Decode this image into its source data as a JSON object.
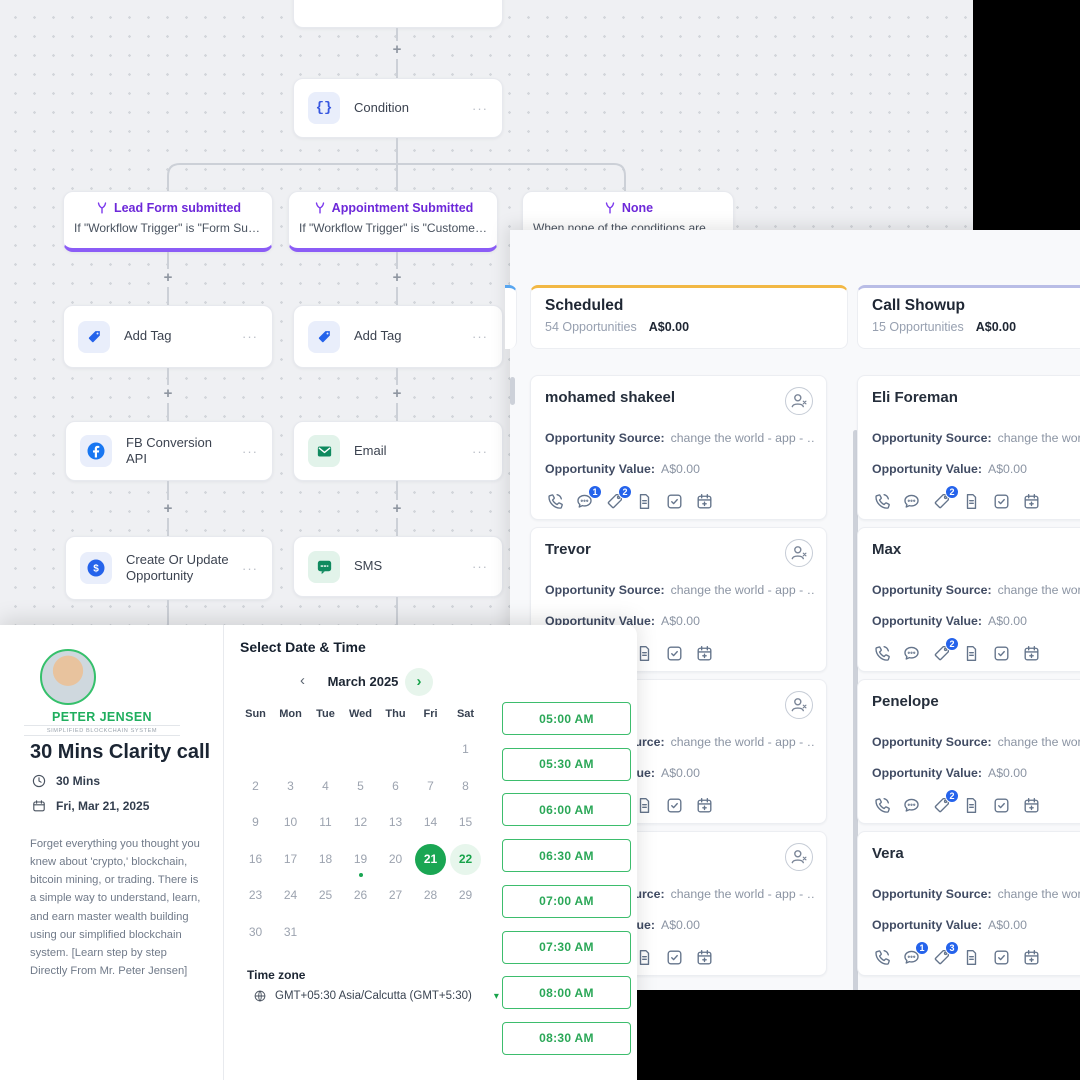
{
  "workflow": {
    "plus": "+",
    "menu_dots": "···",
    "condition": {
      "label": "Condition",
      "glyph": "{}"
    },
    "triggers": [
      {
        "title": "Lead Form submitted",
        "subtitle": "If \"Workflow Trigger\" is \"Form Submit…"
      },
      {
        "title": "Appointment Submitted",
        "subtitle": "If \"Workflow Trigger\" is \"Customer Bo…"
      },
      {
        "title": "None",
        "subtitle": "When none of the conditions are met"
      }
    ],
    "actions": [
      {
        "label": "Add Tag"
      },
      {
        "label": "Add Tag"
      },
      {
        "label": "FB Conversion API"
      },
      {
        "label": "Email"
      },
      {
        "label": "Create Or Update Opportunity"
      },
      {
        "label": "SMS"
      }
    ]
  },
  "pipeline": {
    "source_label": "Opportunity Source:",
    "value_label": "Opportunity Value:",
    "columns": [
      {
        "name": "Scheduled",
        "count": "54 Opportunities",
        "total": "A$0.00",
        "accent": "#f2b844",
        "cards": [
          {
            "name": "mohamed shakeel",
            "source": "change the world - app - …",
            "value": "A$0.00",
            "badges": {
              "chat": "1",
              "tag": "2"
            }
          },
          {
            "name": "Trevor",
            "source": "change the world - app - …",
            "value": "A$0.00",
            "badges": {}
          },
          {
            "name": "",
            "source": "change the world - app - …",
            "value": "A$0.00",
            "badges": {}
          },
          {
            "name": "",
            "source": "change the world - app - …",
            "value": "A$0.00",
            "badges": {}
          }
        ]
      },
      {
        "name": "Call Showup",
        "count": "15 Opportunities",
        "total": "A$0.00",
        "accent": "#b9bde6",
        "cards": [
          {
            "name": "Eli Foreman",
            "source": "change the world - app - …",
            "value": "A$0.00",
            "badges": {
              "tag": "2"
            }
          },
          {
            "name": "Max",
            "source": "change the world - app - …",
            "value": "A$0.00",
            "badges": {
              "tag": "2"
            }
          },
          {
            "name": "Penelope",
            "source": "change the world - app - …",
            "value": "A$0.00",
            "badges": {
              "tag": "2"
            }
          },
          {
            "name": "Vera",
            "source": "change the world - app - …",
            "value": "A$0.00",
            "badges": {
              "chat": "1",
              "tag": "3"
            }
          }
        ]
      }
    ]
  },
  "booking": {
    "profile": {
      "name": "PETER JENSEN",
      "tagline": "SIMPLIFIED BLOCKCHAIN SYSTEM",
      "title": "30 Mins Clarity call",
      "duration": "30 Mins",
      "date": "Fri, Mar 21, 2025",
      "description": "Forget everything you thought you knew about 'crypto,' blockchain, bitcoin mining, or trading. There is a simple way to understand, learn, and earn master wealth building using our simplified blockchain system. [Learn step by step Directly From Mr. Peter Jensen]"
    },
    "calendar": {
      "heading": "Select Date & Time",
      "month": "March 2025",
      "nav_prev": "‹",
      "nav_next": "›",
      "day_headers": [
        "Sun",
        "Mon",
        "Tue",
        "Wed",
        "Thu",
        "Fri",
        "Sat"
      ],
      "weeks": [
        [
          "",
          "",
          "",
          "",
          "",
          "",
          "1"
        ],
        [
          "2",
          "3",
          "4",
          "5",
          "6",
          "7",
          "8"
        ],
        [
          "9",
          "10",
          "11",
          "12",
          "13",
          "14",
          "15"
        ],
        [
          "16",
          "17",
          "18",
          "19",
          "20",
          "21",
          "22"
        ],
        [
          "23",
          "24",
          "25",
          "26",
          "27",
          "28",
          "29"
        ],
        [
          "30",
          "31",
          "",
          "",
          "",
          "",
          ""
        ]
      ],
      "selected_day": "21",
      "secondary_day": "22",
      "dotted_day": "19",
      "timezone_label": "Time zone",
      "timezone_value": "GMT+05:30 Asia/Calcutta (GMT+5:30)",
      "timezone_caret": "▾"
    },
    "slots": [
      "05:00 AM",
      "05:30 AM",
      "06:00 AM",
      "06:30 AM",
      "07:00 AM",
      "07:30 AM",
      "08:00 AM",
      "08:30 AM"
    ]
  }
}
